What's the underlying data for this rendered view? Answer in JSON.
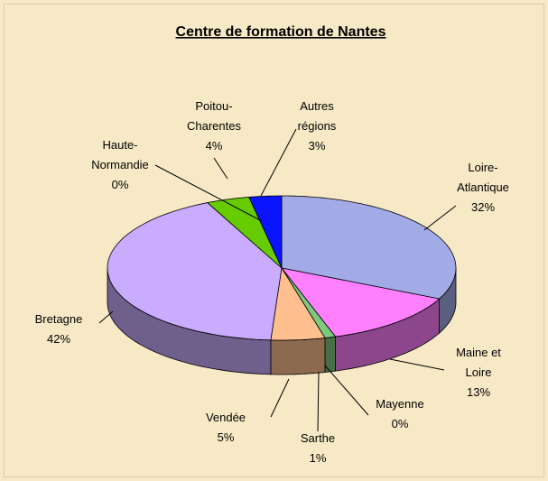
{
  "chart_data": {
    "type": "pie3d",
    "title": "Centre de formation de Nantes",
    "categories": [
      "Loire-\nAtlantique",
      "Maine et\nLoire",
      "Mayenne",
      "Sarthe",
      "Vendée",
      "Bretagne",
      "Haute-\nNormandie",
      "Poitou-\nCharentes",
      "Autres\nrégions"
    ],
    "values": [
      32,
      13,
      0,
      1,
      5,
      42,
      0,
      4,
      3
    ],
    "value_labels": [
      "32%",
      "13%",
      "0%",
      "1%",
      "5%",
      "42%",
      "0%",
      "4%",
      "3%"
    ],
    "colors": [
      "#a3abe6",
      "#ff80ff",
      "#2e7d32",
      "#7fc97f",
      "#ffbf8f",
      "#c9acff",
      "#8080ff",
      "#66cc00",
      "#0a14ff"
    ]
  }
}
